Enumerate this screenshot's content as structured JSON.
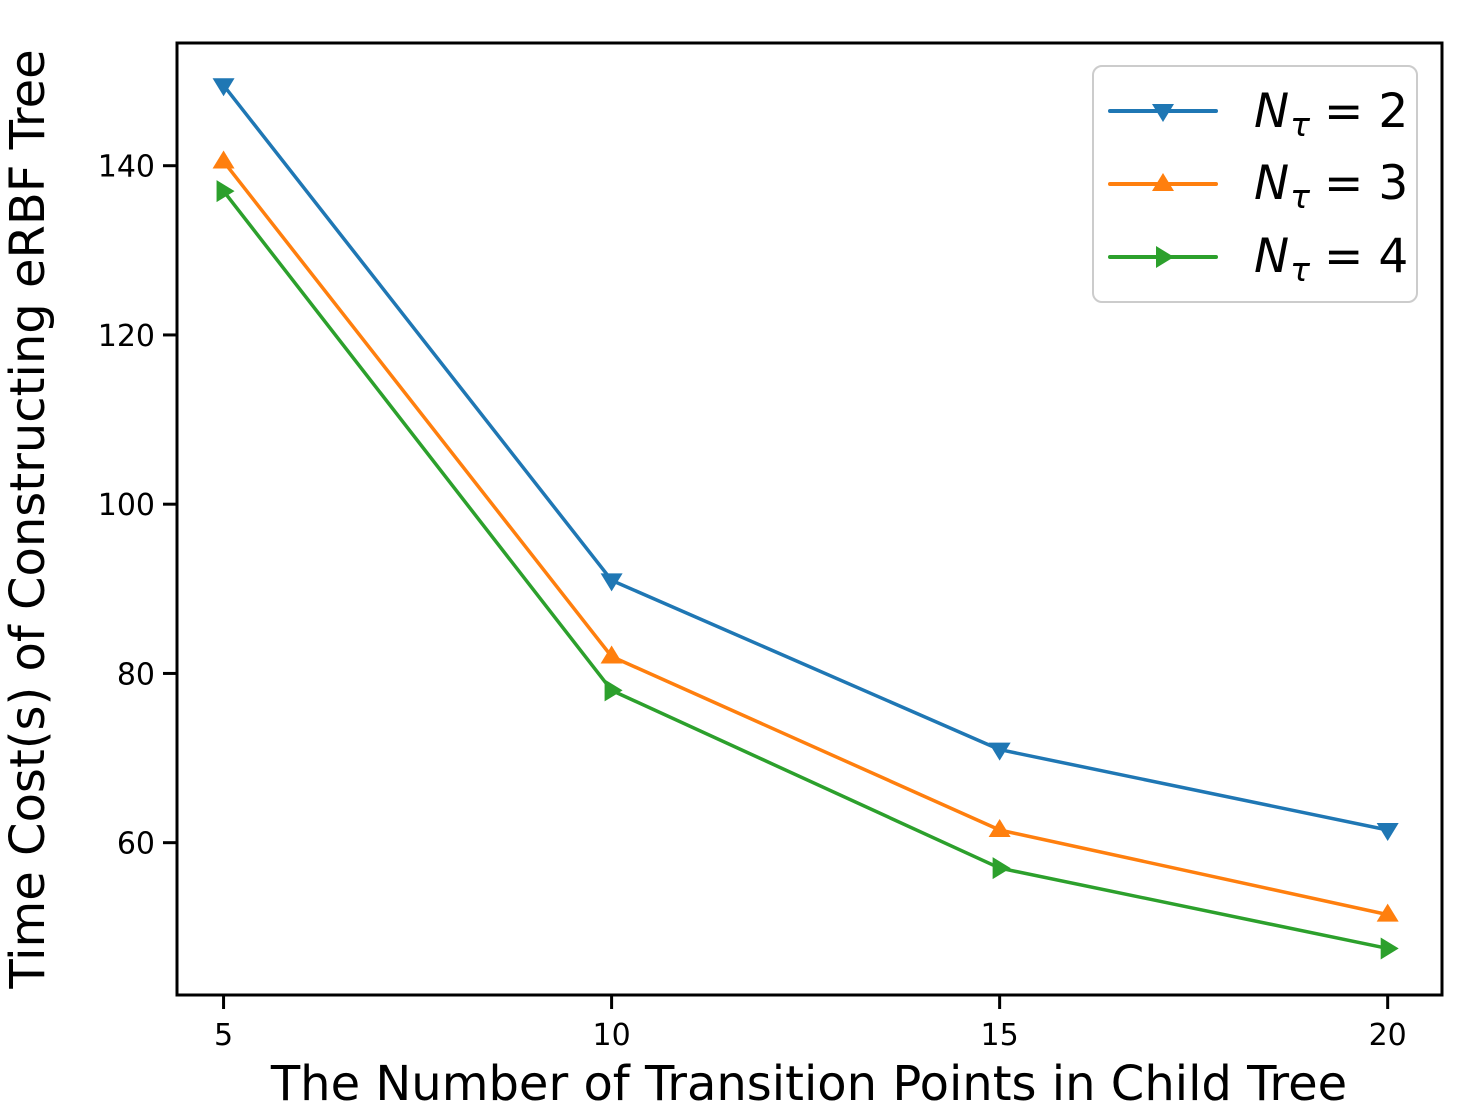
{
  "chart_data": {
    "type": "line",
    "xlabel": "The Number of Transition Points in Child Tree",
    "ylabel": "Time Cost(s) of Constructing eRBF Tree",
    "x": [
      5,
      10,
      15,
      20
    ],
    "xticks": [
      5,
      10,
      15,
      20
    ],
    "yticks": [
      60,
      80,
      100,
      120,
      140
    ],
    "xlim": [
      4.4,
      20.7
    ],
    "ylim": [
      42,
      154.5
    ],
    "grid": false,
    "legend_position": "upper-right",
    "axis_color": "#000000",
    "series": [
      {
        "name": "Nτ = 2",
        "legend": {
          "base": "N",
          "sub": "τ",
          "eq": "= 2"
        },
        "color": "#1f77b4",
        "marker": "triangle-down",
        "values": [
          149.5,
          91,
          71,
          61.5
        ]
      },
      {
        "name": "Nτ = 3",
        "legend": {
          "base": "N",
          "sub": "τ",
          "eq": "= 3"
        },
        "color": "#ff7f0e",
        "marker": "triangle-up",
        "values": [
          140.5,
          82,
          61.5,
          51.5
        ]
      },
      {
        "name": "Nτ = 4",
        "legend": {
          "base": "N",
          "sub": "τ",
          "eq": "= 4"
        },
        "color": "#2ca02c",
        "marker": "triangle-right",
        "values": [
          137,
          78,
          57,
          47.5
        ]
      }
    ]
  }
}
